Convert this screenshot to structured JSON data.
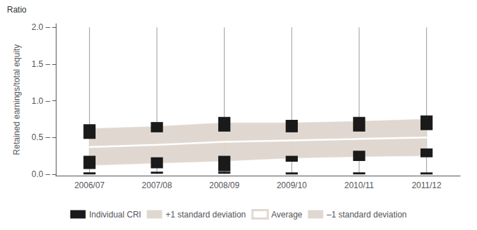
{
  "chart_data": {
    "type": "band",
    "categories": [
      "2006/07",
      "2007/08",
      "2008/09",
      "2009/10",
      "2010/11",
      "2011/12"
    ],
    "ylabel": "Retained earnings/total equity",
    "annotations": [
      {
        "text": "Ratio"
      }
    ],
    "ylim": [
      -0.02,
      2.05
    ],
    "yticks": [
      {
        "value": 0.0,
        "label": "0.0 –"
      },
      {
        "value": 0.5,
        "label": "0.5 –"
      },
      {
        "value": 1.0,
        "label": "1.0 –"
      },
      {
        "value": 1.5,
        "label": "1.5 –"
      },
      {
        "value": 2.0,
        "label": "2.0 –"
      }
    ],
    "grid": false,
    "legend": "bottom",
    "series": [
      {
        "name": "Individual CRI",
        "type": "box",
        "color": "#1a1a1a",
        "upper_low": [
          0.48,
          0.57,
          0.58,
          0.57,
          0.58,
          0.6
        ],
        "upper_high": [
          0.68,
          0.71,
          0.78,
          0.74,
          0.78,
          0.8
        ],
        "lower_low": [
          0.07,
          0.08,
          0.04,
          0.17,
          0.18,
          0.23
        ],
        "lower_high": [
          0.25,
          0.23,
          0.25,
          0.25,
          0.32,
          0.35
        ],
        "dots": [
          0.01,
          0.02,
          0.02,
          0.01,
          0.01,
          0.01
        ]
      },
      {
        "name": "+1 standard deviation",
        "type": "band_upper",
        "color": "#e0d8d0",
        "values": [
          0.62,
          0.65,
          0.7,
          0.7,
          0.72,
          0.75
        ]
      },
      {
        "name": "Average",
        "type": "line",
        "color": "#ffffff",
        "values": [
          0.37,
          0.4,
          0.44,
          0.46,
          0.48,
          0.5
        ]
      },
      {
        "name": "–1 standard deviation",
        "type": "band_lower",
        "color": "#e0d8d0",
        "values": [
          0.12,
          0.15,
          0.18,
          0.22,
          0.24,
          0.25
        ]
      },
      {
        "type": "whisker",
        "color": "#999999",
        "low": [
          0.0,
          0.0,
          0.0,
          0.0,
          0.0,
          0.0
        ],
        "high": [
          2.0,
          2.0,
          2.0,
          2.0,
          2.0,
          2.0
        ]
      }
    ]
  }
}
